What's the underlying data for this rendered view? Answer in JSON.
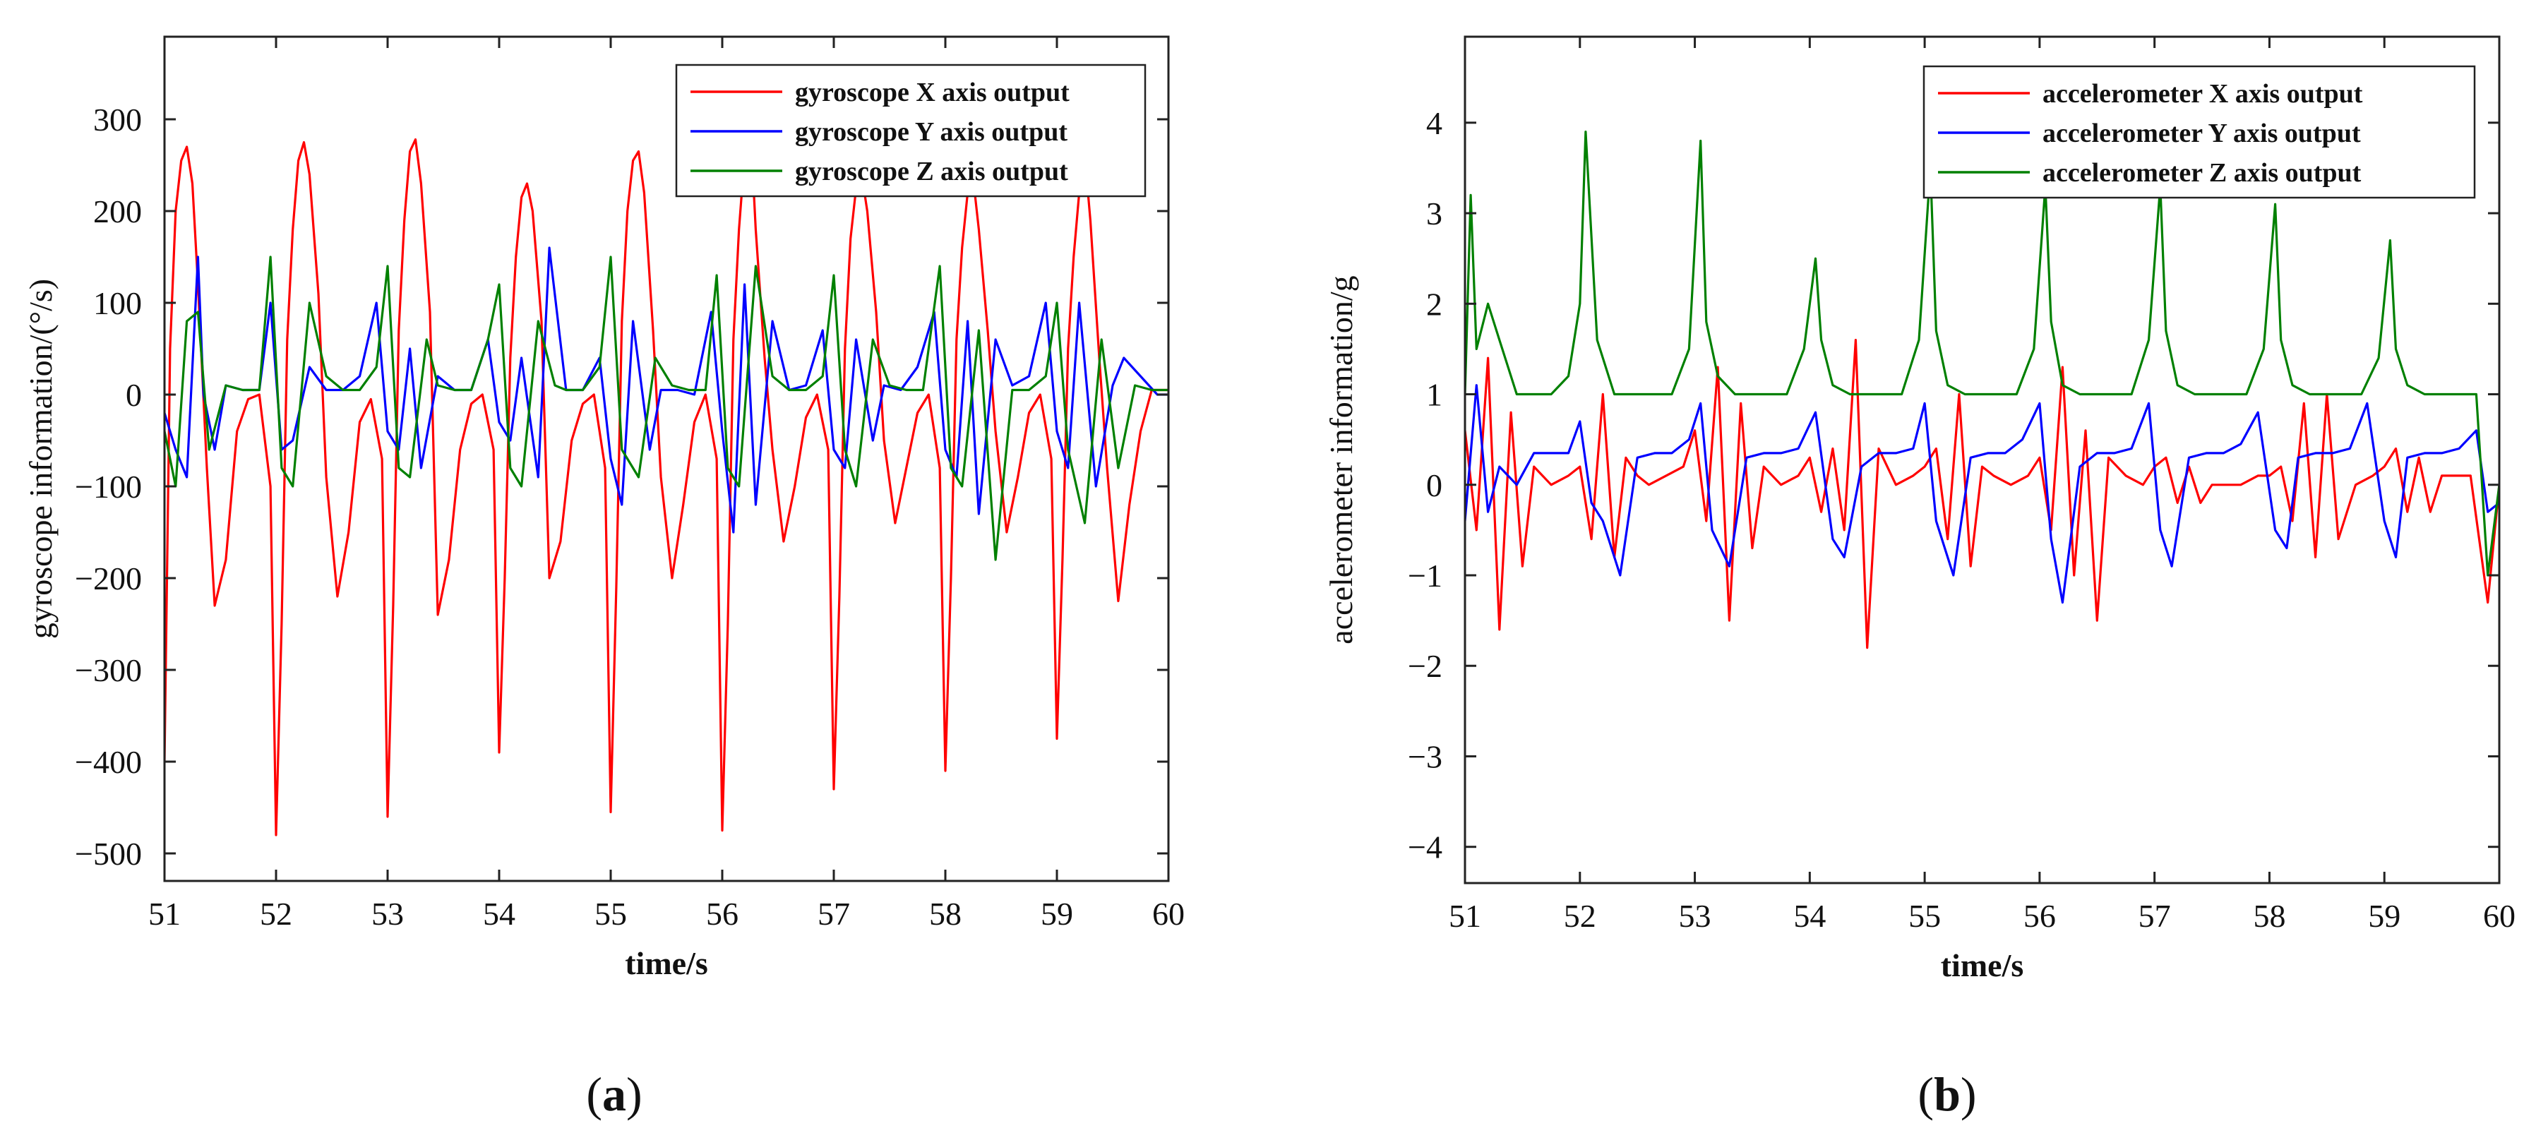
{
  "chart_data": [
    {
      "type": "line",
      "panel_label": "a",
      "title": "",
      "xlabel": "time/s",
      "ylabel": "gyroscope  information/(°/s)",
      "xlim": [
        51,
        60
      ],
      "ylim": [
        -530,
        390
      ],
      "xticks": [
        51,
        52,
        53,
        54,
        55,
        56,
        57,
        58,
        59,
        60
      ],
      "yticks": [
        300,
        200,
        100,
        0,
        -100,
        -200,
        -300,
        -400,
        -500
      ],
      "grid": false,
      "legend_position": "top-right",
      "series": [
        {
          "name": "gyroscope X axis output",
          "color": "#ff0000",
          "x": [
            51.0,
            51.05,
            51.1,
            51.15,
            51.2,
            51.25,
            51.3,
            51.38,
            51.45,
            51.55,
            51.65,
            51.75,
            51.85,
            51.95,
            52.0,
            52.05,
            52.1,
            52.15,
            52.2,
            52.25,
            52.3,
            52.38,
            52.45,
            52.55,
            52.65,
            52.75,
            52.85,
            52.95,
            53.0,
            53.05,
            53.1,
            53.15,
            53.2,
            53.25,
            53.3,
            53.38,
            53.45,
            53.55,
            53.65,
            53.75,
            53.85,
            53.95,
            54.0,
            54.05,
            54.1,
            54.15,
            54.2,
            54.25,
            54.3,
            54.38,
            54.45,
            54.55,
            54.65,
            54.75,
            54.85,
            54.95,
            55.0,
            55.05,
            55.1,
            55.15,
            55.2,
            55.25,
            55.3,
            55.38,
            55.45,
            55.55,
            55.65,
            55.75,
            55.85,
            55.95,
            56.0,
            56.05,
            56.1,
            56.15,
            56.2,
            56.25,
            56.3,
            56.38,
            56.45,
            56.55,
            56.65,
            56.75,
            56.85,
            56.95,
            57.0,
            57.05,
            57.1,
            57.15,
            57.2,
            57.25,
            57.3,
            57.38,
            57.45,
            57.55,
            57.65,
            57.75,
            57.85,
            57.95,
            58.0,
            58.05,
            58.1,
            58.15,
            58.2,
            58.25,
            58.3,
            58.38,
            58.45,
            58.55,
            58.65,
            58.75,
            58.85,
            58.95,
            59.0,
            59.05,
            59.1,
            59.15,
            59.2,
            59.25,
            59.3,
            59.38,
            59.45,
            59.55,
            59.65,
            59.75,
            59.85,
            59.95,
            60.0
          ],
          "values": [
            -400,
            50,
            200,
            255,
            270,
            230,
            120,
            -80,
            -230,
            -180,
            -40,
            -5,
            0,
            -100,
            -480,
            -250,
            60,
            180,
            255,
            275,
            240,
            110,
            -90,
            -220,
            -150,
            -30,
            -5,
            -70,
            -460,
            -230,
            70,
            190,
            265,
            278,
            230,
            90,
            -240,
            -180,
            -60,
            -10,
            0,
            -60,
            -390,
            -200,
            40,
            150,
            215,
            230,
            200,
            80,
            -200,
            -160,
            -50,
            -10,
            0,
            -80,
            -455,
            -210,
            80,
            200,
            255,
            265,
            220,
            70,
            -90,
            -200,
            -120,
            -30,
            0,
            -70,
            -475,
            -250,
            60,
            180,
            260,
            300,
            180,
            40,
            -60,
            -160,
            -100,
            -25,
            0,
            -60,
            -430,
            -220,
            50,
            170,
            225,
            240,
            200,
            90,
            -50,
            -140,
            -80,
            -20,
            0,
            -80,
            -410,
            -200,
            60,
            160,
            220,
            235,
            180,
            70,
            -40,
            -150,
            -90,
            -20,
            0,
            -70,
            -375,
            -180,
            50,
            150,
            220,
            260,
            190,
            40,
            -80,
            -225,
            -120,
            -40,
            5,
            5,
            5
          ]
        },
        {
          "name": "gyroscope Y axis output",
          "color": "#0000ff",
          "x": [
            51.0,
            51.1,
            51.2,
            51.3,
            51.35,
            51.45,
            51.55,
            51.7,
            51.85,
            51.95,
            52.05,
            52.15,
            52.3,
            52.45,
            52.6,
            52.75,
            52.9,
            53.0,
            53.1,
            53.2,
            53.3,
            53.45,
            53.6,
            53.75,
            53.9,
            54.0,
            54.1,
            54.2,
            54.35,
            54.45,
            54.6,
            54.75,
            54.9,
            55.0,
            55.1,
            55.2,
            55.35,
            55.45,
            55.6,
            55.75,
            55.9,
            56.0,
            56.1,
            56.2,
            56.3,
            56.45,
            56.6,
            56.75,
            56.9,
            57.0,
            57.1,
            57.2,
            57.35,
            57.45,
            57.6,
            57.75,
            57.9,
            58.0,
            58.1,
            58.2,
            58.3,
            58.45,
            58.6,
            58.75,
            58.9,
            59.0,
            59.1,
            59.2,
            59.35,
            59.5,
            59.6,
            59.75,
            59.9,
            60.0
          ],
          "values": [
            -20,
            -60,
            -90,
            150,
            0,
            -60,
            10,
            5,
            5,
            100,
            -60,
            -50,
            30,
            5,
            5,
            20,
            100,
            -40,
            -60,
            50,
            -80,
            20,
            5,
            5,
            60,
            -30,
            -50,
            40,
            -90,
            160,
            5,
            5,
            40,
            -70,
            -120,
            80,
            -60,
            5,
            5,
            0,
            90,
            -40,
            -150,
            120,
            -120,
            80,
            5,
            10,
            70,
            -60,
            -80,
            60,
            -50,
            10,
            5,
            30,
            90,
            -60,
            -90,
            80,
            -130,
            60,
            10,
            20,
            100,
            -40,
            -80,
            100,
            -100,
            10,
            40,
            20,
            0,
            0
          ]
        },
        {
          "name": "gyroscope Z axis output",
          "color": "#008000",
          "x": [
            51.0,
            51.1,
            51.2,
            51.3,
            51.4,
            51.55,
            51.7,
            51.85,
            51.95,
            52.05,
            52.15,
            52.3,
            52.45,
            52.6,
            52.75,
            52.9,
            53.0,
            53.1,
            53.2,
            53.35,
            53.45,
            53.6,
            53.75,
            53.9,
            54.0,
            54.1,
            54.2,
            54.35,
            54.5,
            54.6,
            54.75,
            54.9,
            55.0,
            55.1,
            55.25,
            55.4,
            55.55,
            55.7,
            55.85,
            55.95,
            56.05,
            56.15,
            56.3,
            56.45,
            56.6,
            56.75,
            56.9,
            57.0,
            57.1,
            57.2,
            57.35,
            57.5,
            57.65,
            57.8,
            57.95,
            58.05,
            58.15,
            58.3,
            58.45,
            58.6,
            58.75,
            58.9,
            59.0,
            59.1,
            59.25,
            59.4,
            59.55,
            59.7,
            59.85,
            60.0
          ],
          "values": [
            -40,
            -100,
            80,
            90,
            -60,
            10,
            5,
            5,
            150,
            -80,
            -100,
            100,
            20,
            5,
            5,
            30,
            140,
            -80,
            -90,
            60,
            10,
            5,
            5,
            60,
            120,
            -80,
            -100,
            80,
            10,
            5,
            5,
            30,
            150,
            -60,
            -90,
            40,
            10,
            5,
            5,
            130,
            -80,
            -100,
            140,
            20,
            5,
            5,
            20,
            130,
            -60,
            -100,
            60,
            10,
            5,
            5,
            140,
            -80,
            -100,
            70,
            -180,
            5,
            5,
            20,
            100,
            -60,
            -140,
            60,
            -80,
            10,
            5,
            5
          ]
        }
      ]
    },
    {
      "type": "line",
      "panel_label": "b",
      "title": "",
      "xlabel": "time/s",
      "ylabel": "accelerometer  information/g",
      "xlim": [
        51,
        60
      ],
      "ylim": [
        -4.4,
        4.95
      ],
      "xticks": [
        51,
        52,
        53,
        54,
        55,
        56,
        57,
        58,
        59,
        60
      ],
      "yticks": [
        4,
        3,
        2,
        1,
        0,
        -1,
        -2,
        -3,
        -4
      ],
      "grid": false,
      "legend_position": "top-right",
      "series": [
        {
          "name": "accelerometer X axis output",
          "color": "#ff0000",
          "x": [
            51.0,
            51.1,
            51.2,
            51.3,
            51.4,
            51.5,
            51.6,
            51.75,
            51.9,
            52.0,
            52.1,
            52.2,
            52.3,
            52.4,
            52.5,
            52.6,
            52.75,
            52.9,
            53.0,
            53.1,
            53.2,
            53.3,
            53.4,
            53.5,
            53.6,
            53.75,
            53.9,
            54.0,
            54.1,
            54.2,
            54.3,
            54.4,
            54.5,
            54.6,
            54.75,
            54.9,
            55.0,
            55.1,
            55.2,
            55.3,
            55.4,
            55.5,
            55.6,
            55.75,
            55.9,
            56.0,
            56.1,
            56.2,
            56.3,
            56.4,
            56.5,
            56.6,
            56.75,
            56.9,
            57.0,
            57.1,
            57.2,
            57.3,
            57.4,
            57.5,
            57.6,
            57.75,
            57.9,
            58.0,
            58.1,
            58.2,
            58.3,
            58.4,
            58.5,
            58.6,
            58.75,
            58.9,
            59.0,
            59.1,
            59.2,
            59.3,
            59.4,
            59.5,
            59.6,
            59.75,
            59.9,
            60.0
          ],
          "values": [
            0.6,
            -0.5,
            1.4,
            -1.6,
            0.8,
            -0.9,
            0.2,
            0.0,
            0.1,
            0.2,
            -0.6,
            1.0,
            -0.8,
            0.3,
            0.1,
            0.0,
            0.1,
            0.2,
            0.6,
            -0.4,
            1.3,
            -1.5,
            0.9,
            -0.7,
            0.2,
            0.0,
            0.1,
            0.3,
            -0.3,
            0.4,
            -0.5,
            1.6,
            -1.8,
            0.4,
            0.0,
            0.1,
            0.2,
            0.4,
            -0.6,
            1.0,
            -0.9,
            0.2,
            0.1,
            0.0,
            0.1,
            0.3,
            -0.5,
            1.3,
            -1.0,
            0.6,
            -1.5,
            0.3,
            0.1,
            0.0,
            0.2,
            0.3,
            -0.2,
            0.2,
            -0.2,
            0.0,
            0.0,
            0.0,
            0.1,
            0.1,
            0.2,
            -0.4,
            0.9,
            -0.8,
            1.0,
            -0.6,
            0.0,
            0.1,
            0.2,
            0.4,
            -0.3,
            0.3,
            -0.3,
            0.1,
            0.1,
            0.1,
            -1.3,
            0.0
          ]
        },
        {
          "name": "accelerometer Y axis output",
          "color": "#0000ff",
          "x": [
            51.0,
            51.1,
            51.2,
            51.3,
            51.45,
            51.6,
            51.75,
            51.9,
            52.0,
            52.1,
            52.2,
            52.35,
            52.5,
            52.65,
            52.8,
            52.95,
            53.05,
            53.15,
            53.3,
            53.45,
            53.6,
            53.75,
            53.9,
            54.05,
            54.2,
            54.3,
            54.45,
            54.6,
            54.75,
            54.9,
            55.0,
            55.1,
            55.25,
            55.4,
            55.55,
            55.7,
            55.85,
            56.0,
            56.1,
            56.2,
            56.35,
            56.5,
            56.65,
            56.8,
            56.95,
            57.05,
            57.15,
            57.3,
            57.45,
            57.6,
            57.75,
            57.9,
            58.05,
            58.15,
            58.25,
            58.4,
            58.55,
            58.7,
            58.85,
            59.0,
            59.1,
            59.2,
            59.35,
            59.5,
            59.65,
            59.8,
            59.9,
            60.0
          ],
          "values": [
            -0.4,
            1.1,
            -0.3,
            0.2,
            0.0,
            0.35,
            0.35,
            0.35,
            0.7,
            -0.2,
            -0.4,
            -1.0,
            0.3,
            0.35,
            0.35,
            0.5,
            0.9,
            -0.5,
            -0.9,
            0.3,
            0.35,
            0.35,
            0.4,
            0.8,
            -0.6,
            -0.8,
            0.2,
            0.35,
            0.35,
            0.4,
            0.9,
            -0.4,
            -1.0,
            0.3,
            0.35,
            0.35,
            0.5,
            0.9,
            -0.6,
            -1.3,
            0.2,
            0.35,
            0.35,
            0.4,
            0.9,
            -0.5,
            -0.9,
            0.3,
            0.35,
            0.35,
            0.45,
            0.8,
            -0.5,
            -0.7,
            0.3,
            0.35,
            0.35,
            0.4,
            0.9,
            -0.4,
            -0.8,
            0.3,
            0.35,
            0.35,
            0.4,
            0.6,
            -0.3,
            -0.2
          ]
        },
        {
          "name": "accelerometer Z axis output",
          "color": "#008000",
          "x": [
            51.0,
            51.05,
            51.1,
            51.2,
            51.3,
            51.45,
            51.6,
            51.75,
            51.9,
            52.0,
            52.05,
            52.15,
            52.3,
            52.5,
            52.65,
            52.8,
            52.95,
            53.05,
            53.1,
            53.2,
            53.35,
            53.5,
            53.65,
            53.8,
            53.95,
            54.05,
            54.1,
            54.2,
            54.35,
            54.5,
            54.65,
            54.8,
            54.95,
            55.05,
            55.1,
            55.2,
            55.35,
            55.5,
            55.65,
            55.8,
            55.95,
            56.05,
            56.1,
            56.2,
            56.35,
            56.5,
            56.65,
            56.8,
            56.95,
            57.05,
            57.1,
            57.2,
            57.35,
            57.5,
            57.65,
            57.8,
            57.95,
            58.05,
            58.1,
            58.2,
            58.35,
            58.5,
            58.65,
            58.8,
            58.95,
            59.05,
            59.1,
            59.2,
            59.35,
            59.5,
            59.65,
            59.8,
            59.9,
            60.0
          ],
          "values": [
            1.0,
            3.2,
            1.5,
            2.0,
            1.6,
            1.0,
            1.0,
            1.0,
            1.2,
            2.0,
            3.9,
            1.6,
            1.0,
            1.0,
            1.0,
            1.0,
            1.5,
            3.8,
            1.8,
            1.2,
            1.0,
            1.0,
            1.0,
            1.0,
            1.5,
            2.5,
            1.6,
            1.1,
            1.0,
            1.0,
            1.0,
            1.0,
            1.6,
            3.5,
            1.7,
            1.1,
            1.0,
            1.0,
            1.0,
            1.0,
            1.5,
            3.3,
            1.8,
            1.1,
            1.0,
            1.0,
            1.0,
            1.0,
            1.6,
            3.3,
            1.7,
            1.1,
            1.0,
            1.0,
            1.0,
            1.0,
            1.5,
            3.1,
            1.6,
            1.1,
            1.0,
            1.0,
            1.0,
            1.0,
            1.4,
            2.7,
            1.5,
            1.1,
            1.0,
            1.0,
            1.0,
            1.0,
            -1.0,
            0.0
          ]
        }
      ]
    }
  ],
  "captions": [
    {
      "open": "(",
      "letter": "a",
      "close": ")"
    },
    {
      "open": "(",
      "letter": "b",
      "close": ")"
    }
  ]
}
